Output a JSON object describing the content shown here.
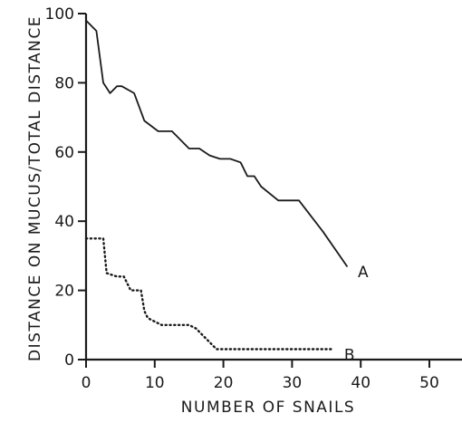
{
  "chart_data": {
    "type": "line",
    "xlabel": "NUMBER OF SNAILS",
    "ylabel": "DISTANCE ON MUCUS/TOTAL DISTANCE",
    "xlim": [
      0,
      52
    ],
    "ylim": [
      0,
      100
    ],
    "x_ticks": [
      "0",
      "10",
      "20",
      "30",
      "40",
      "50"
    ],
    "y_ticks": [
      "0",
      "20",
      "40",
      "60",
      "80",
      "100"
    ],
    "grid": false,
    "series": [
      {
        "name": "A",
        "style": "solid",
        "color": "#1a1a1a",
        "x": [
          0,
          1.5,
          2.5,
          3.5,
          4.5,
          5.2,
          7.0,
          8.5,
          10.5,
          12.5,
          15,
          16.5,
          18,
          19.5,
          21,
          22.5,
          23.5,
          24.5,
          25.5,
          28,
          31,
          34.5,
          38
        ],
        "y": [
          98,
          95,
          80,
          77,
          79,
          79,
          77,
          69,
          66,
          66,
          61,
          61,
          59,
          58,
          58,
          57,
          53,
          53,
          50,
          46,
          46,
          37,
          27
        ]
      },
      {
        "name": "B",
        "style": "dotted",
        "color": "#1a1a1a",
        "x": [
          0,
          2.5,
          3.0,
          4.5,
          5.5,
          6.5,
          7.0,
          8.0,
          8.5,
          9.0,
          10,
          11,
          13,
          15,
          16,
          17.5,
          19,
          20,
          22,
          24,
          27,
          30,
          33,
          36
        ],
        "y": [
          35,
          35,
          25,
          24,
          24,
          20,
          20,
          20,
          14,
          12,
          11,
          10,
          10,
          10,
          9,
          6,
          3,
          3,
          3,
          3,
          3,
          3,
          3,
          3
        ]
      }
    ]
  }
}
